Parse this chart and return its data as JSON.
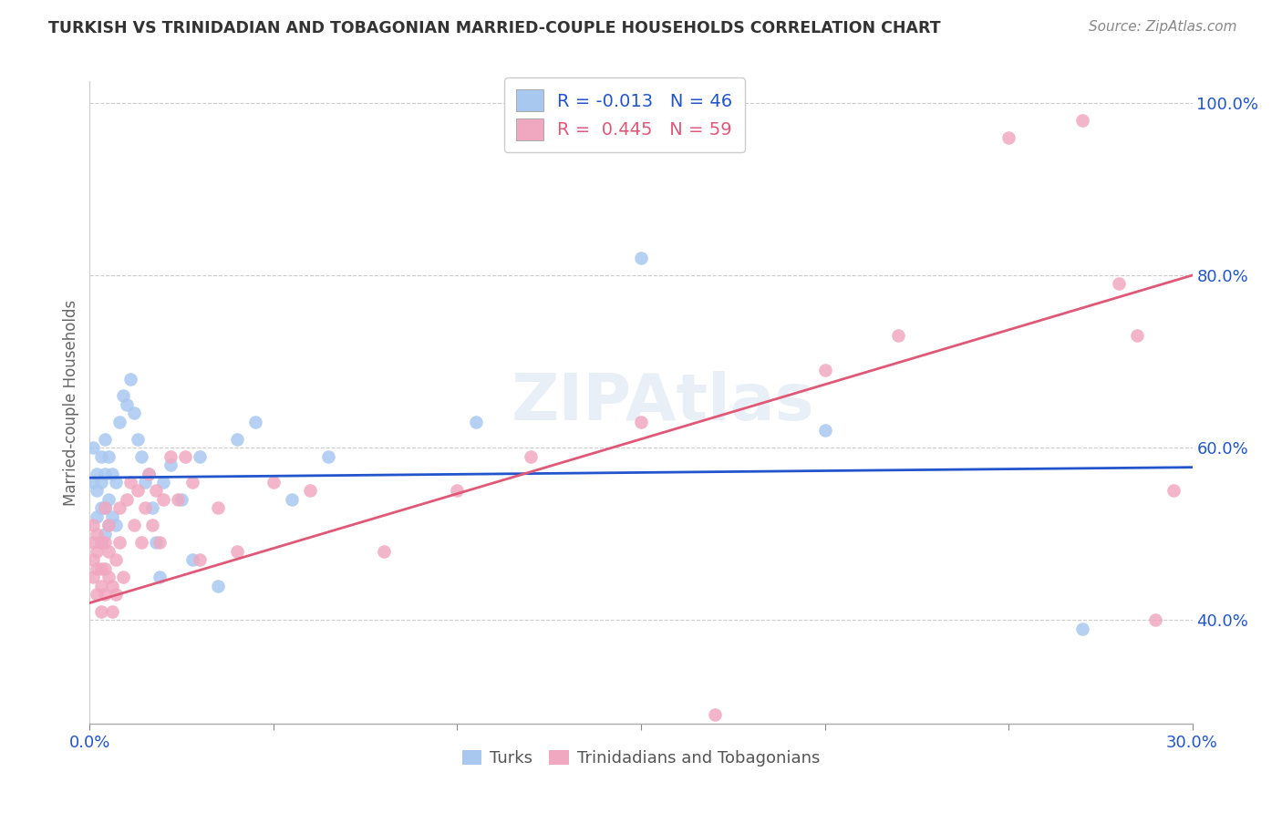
{
  "title": "TURKISH VS TRINIDADIAN AND TOBAGONIAN MARRIED-COUPLE HOUSEHOLDS CORRELATION CHART",
  "source": "Source: ZipAtlas.com",
  "ylabel": "Married-couple Households",
  "label_turks": "Turks",
  "label_trint": "Trinidadians and Tobagonians",
  "xmin": 0.0,
  "xmax": 0.3,
  "ymin": 0.28,
  "ymax": 1.025,
  "yticks": [
    0.4,
    0.6,
    0.8,
    1.0
  ],
  "ytick_labels": [
    "40.0%",
    "60.0%",
    "80.0%",
    "100.0%"
  ],
  "xticks": [
    0.0,
    0.05,
    0.1,
    0.15,
    0.2,
    0.25,
    0.3
  ],
  "xtick_labels": [
    "0.0%",
    "",
    "",
    "",
    "",
    "",
    "30.0%"
  ],
  "r_turks": -0.013,
  "n_turks": 46,
  "r_trint": 0.445,
  "n_trint": 59,
  "color_turks": "#a8c8f0",
  "color_trint": "#f0a8c0",
  "line_color_turks": "#2255cc",
  "line_color_trint": "#e05878",
  "watermark": "ZIPAtlas",
  "turks_x": [
    0.001,
    0.001,
    0.002,
    0.002,
    0.002,
    0.003,
    0.003,
    0.003,
    0.003,
    0.004,
    0.004,
    0.004,
    0.004,
    0.005,
    0.005,
    0.005,
    0.006,
    0.006,
    0.007,
    0.007,
    0.008,
    0.009,
    0.01,
    0.011,
    0.012,
    0.013,
    0.014,
    0.015,
    0.016,
    0.017,
    0.018,
    0.019,
    0.02,
    0.022,
    0.025,
    0.028,
    0.03,
    0.035,
    0.04,
    0.045,
    0.055,
    0.065,
    0.105,
    0.15,
    0.2,
    0.27
  ],
  "turks_y": [
    0.56,
    0.6,
    0.52,
    0.55,
    0.57,
    0.49,
    0.53,
    0.56,
    0.59,
    0.5,
    0.53,
    0.57,
    0.61,
    0.51,
    0.54,
    0.59,
    0.52,
    0.57,
    0.51,
    0.56,
    0.63,
    0.66,
    0.65,
    0.68,
    0.64,
    0.61,
    0.59,
    0.56,
    0.57,
    0.53,
    0.49,
    0.45,
    0.56,
    0.58,
    0.54,
    0.47,
    0.59,
    0.44,
    0.61,
    0.63,
    0.54,
    0.59,
    0.63,
    0.82,
    0.62,
    0.39
  ],
  "trint_x": [
    0.001,
    0.001,
    0.001,
    0.001,
    0.002,
    0.002,
    0.002,
    0.002,
    0.003,
    0.003,
    0.003,
    0.003,
    0.004,
    0.004,
    0.004,
    0.004,
    0.005,
    0.005,
    0.005,
    0.006,
    0.006,
    0.007,
    0.007,
    0.008,
    0.008,
    0.009,
    0.01,
    0.011,
    0.012,
    0.013,
    0.014,
    0.015,
    0.016,
    0.017,
    0.018,
    0.019,
    0.02,
    0.022,
    0.024,
    0.026,
    0.028,
    0.03,
    0.035,
    0.04,
    0.05,
    0.06,
    0.08,
    0.1,
    0.12,
    0.15,
    0.17,
    0.2,
    0.22,
    0.25,
    0.27,
    0.28,
    0.285,
    0.29,
    0.295
  ],
  "trint_y": [
    0.49,
    0.47,
    0.51,
    0.45,
    0.43,
    0.46,
    0.48,
    0.5,
    0.41,
    0.44,
    0.46,
    0.49,
    0.43,
    0.46,
    0.49,
    0.53,
    0.45,
    0.48,
    0.51,
    0.41,
    0.44,
    0.43,
    0.47,
    0.49,
    0.53,
    0.45,
    0.54,
    0.56,
    0.51,
    0.55,
    0.49,
    0.53,
    0.57,
    0.51,
    0.55,
    0.49,
    0.54,
    0.59,
    0.54,
    0.59,
    0.56,
    0.47,
    0.53,
    0.48,
    0.56,
    0.55,
    0.48,
    0.55,
    0.59,
    0.63,
    0.29,
    0.69,
    0.73,
    0.96,
    0.98,
    0.79,
    0.73,
    0.4,
    0.55
  ]
}
